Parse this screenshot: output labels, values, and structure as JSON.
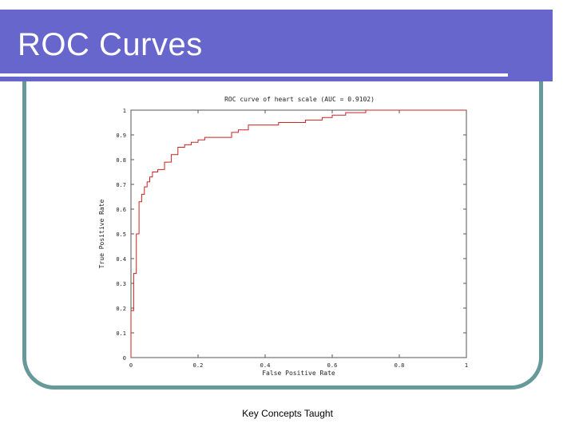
{
  "slide": {
    "title": "ROC Curves",
    "footer": "Key Concepts Taught"
  },
  "colors": {
    "title_bar": "#6666cc",
    "frame": "#669999",
    "curve": "#cc2222"
  },
  "chart_data": {
    "type": "line",
    "title": "ROC curve of heart scale (AUC = 0.9102)",
    "xlabel": "False Positive Rate",
    "ylabel": "True Positive Rate",
    "xlim": [
      0,
      1
    ],
    "ylim": [
      0,
      1
    ],
    "xticks": [
      "0",
      "0.2",
      "0.4",
      "0.6",
      "0.8",
      "1"
    ],
    "yticks": [
      "0",
      "0.1",
      "0.2",
      "0.3",
      "0.4",
      "0.5",
      "0.6",
      "0.7",
      "0.8",
      "0.9",
      "1"
    ],
    "grid": false,
    "series": [
      {
        "x": [
          0,
          0,
          0.008,
          0.008,
          0.016,
          0.016,
          0.024,
          0.024,
          0.032,
          0.032,
          0.04,
          0.04,
          0.048,
          0.048,
          0.056,
          0.056,
          0.064,
          0.064,
          0.08,
          0.08,
          0.1,
          0.1,
          0.12,
          0.12,
          0.14,
          0.14,
          0.16,
          0.16,
          0.18,
          0.18,
          0.2,
          0.2,
          0.22,
          0.22,
          0.3,
          0.3,
          0.32,
          0.32,
          0.35,
          0.35,
          0.44,
          0.44,
          0.52,
          0.52,
          0.57,
          0.57,
          0.6,
          0.6,
          0.64,
          0.64,
          0.7,
          0.7,
          1.0
        ],
        "y": [
          0,
          0.19,
          0.19,
          0.34,
          0.34,
          0.5,
          0.5,
          0.63,
          0.63,
          0.66,
          0.66,
          0.69,
          0.69,
          0.71,
          0.71,
          0.73,
          0.73,
          0.75,
          0.75,
          0.76,
          0.76,
          0.79,
          0.79,
          0.82,
          0.82,
          0.85,
          0.85,
          0.86,
          0.86,
          0.87,
          0.87,
          0.88,
          0.88,
          0.89,
          0.89,
          0.91,
          0.91,
          0.92,
          0.92,
          0.94,
          0.94,
          0.95,
          0.95,
          0.96,
          0.96,
          0.97,
          0.97,
          0.98,
          0.98,
          0.99,
          0.99,
          1.0,
          1.0
        ]
      }
    ]
  }
}
